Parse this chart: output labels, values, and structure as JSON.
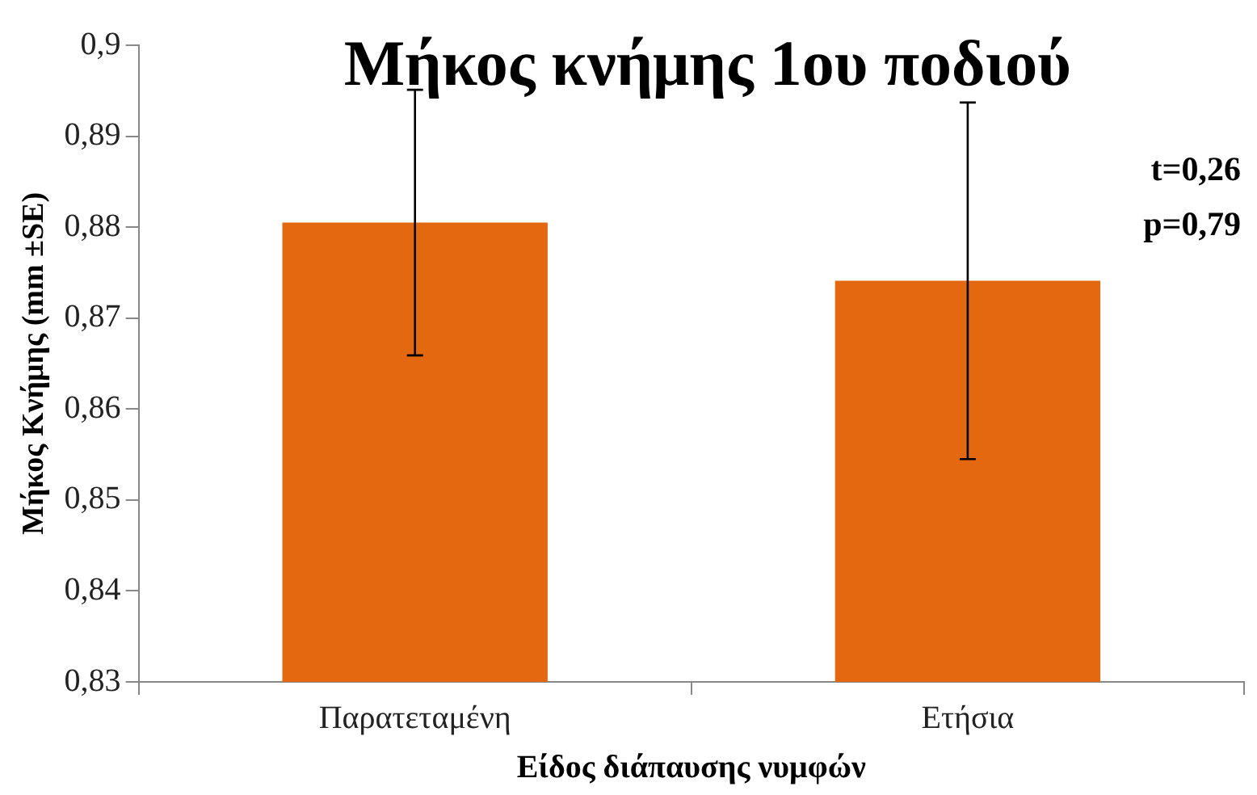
{
  "chart_data": {
    "type": "bar",
    "title": "Μήκος κνήμης 1ου ποδιού",
    "xlabel": "Είδος διάπαυσης νυμφών",
    "ylabel": "Μήκος Κνήμης (mm ±SE)",
    "categories": [
      "Παρατεταμένη",
      "Ετήσια"
    ],
    "values": [
      0.8805,
      0.8741
    ],
    "errors": [
      0.0146,
      0.0196
    ],
    "color": "#e3680f",
    "ylim": [
      0.83,
      0.9
    ],
    "yticks": [
      {
        "value": 0.83,
        "label": "0,83"
      },
      {
        "value": 0.84,
        "label": "0,84"
      },
      {
        "value": 0.85,
        "label": "0,85"
      },
      {
        "value": 0.86,
        "label": "0,86"
      },
      {
        "value": 0.87,
        "label": "0,87"
      },
      {
        "value": 0.88,
        "label": "0,88"
      },
      {
        "value": 0.89,
        "label": "0,89"
      },
      {
        "value": 0.9,
        "label": "0,9"
      }
    ],
    "annotations": [
      "t=0,26",
      "p=0,79"
    ],
    "grid": false,
    "legend": false
  }
}
